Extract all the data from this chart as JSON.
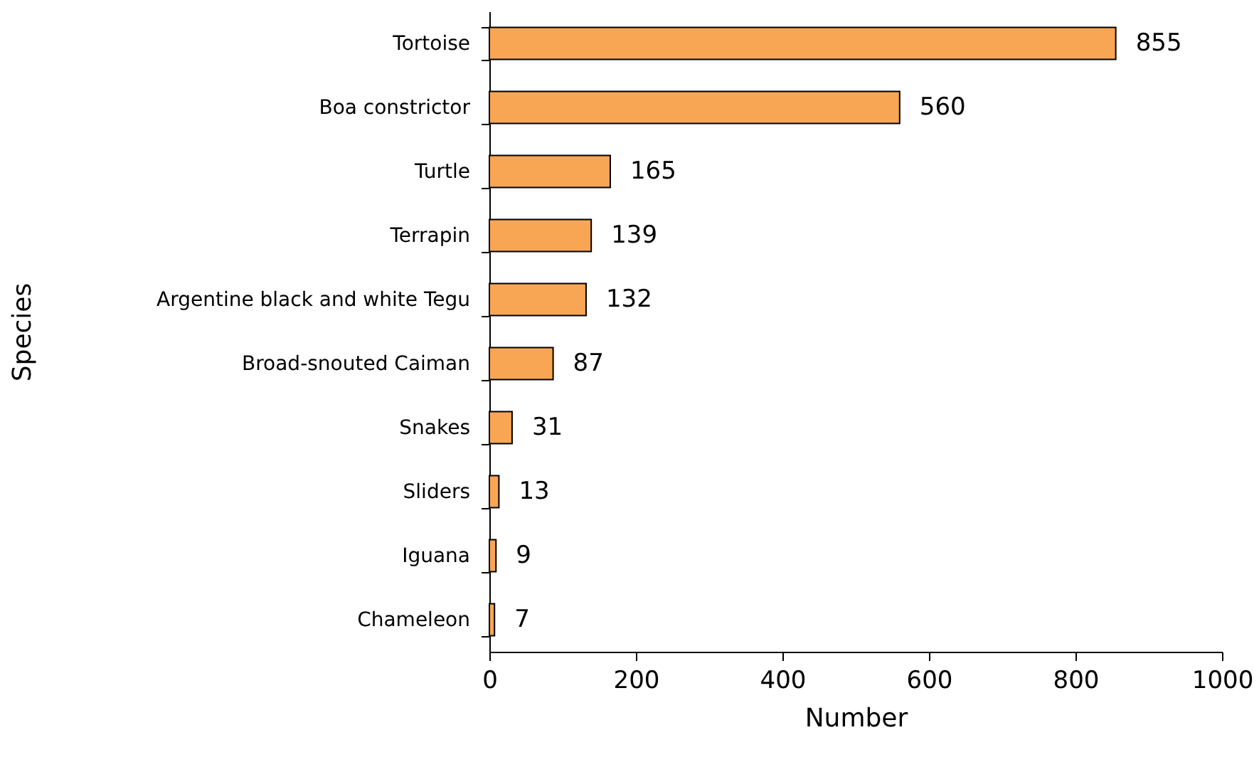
{
  "chart_data": {
    "type": "bar",
    "orientation": "horizontal",
    "xlabel": "Number",
    "ylabel": "Species",
    "categories": [
      "Tortoise",
      "Boa constrictor",
      "Turtle",
      "Terrapin",
      "Argentine black and white Tegu",
      "Broad-snouted Caiman",
      "Snakes",
      "Sliders",
      "Iguana",
      "Chameleon"
    ],
    "values": [
      855,
      560,
      165,
      139,
      132,
      87,
      31,
      13,
      9,
      7
    ],
    "color": "#f9a654",
    "xlim": [
      0,
      1000
    ],
    "xticks": [
      0,
      200,
      400,
      600,
      800,
      1000
    ],
    "data_labels": true
  }
}
